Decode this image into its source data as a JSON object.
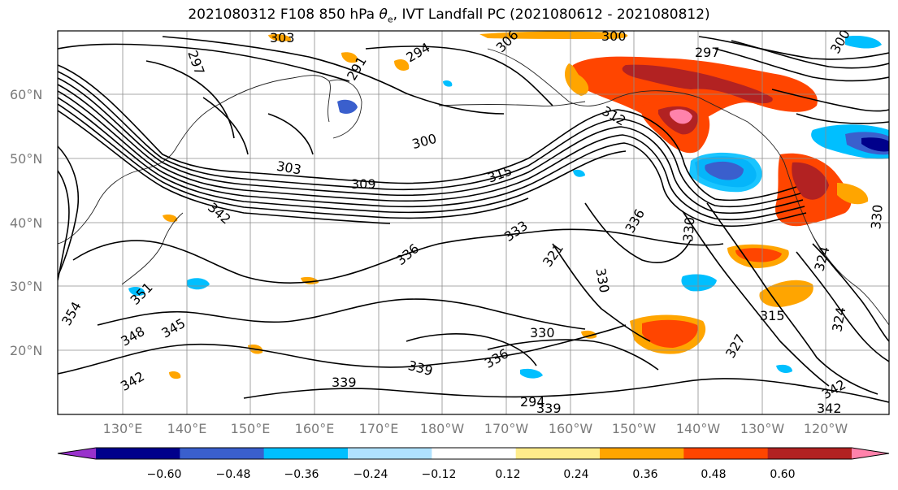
{
  "title": {
    "prefix": "2021080312 F108 850 hPa ",
    "symbol": "θ",
    "subscript": "e",
    "suffix": ", IVT Landfall PC (2021080612 - 2021080812)"
  },
  "axes": {
    "lat_labels": [
      "60°N",
      "50°N",
      "40°N",
      "30°N",
      "20°N"
    ],
    "lon_labels": [
      "130°E",
      "140°E",
      "150°E",
      "160°E",
      "170°E",
      "180°W",
      "170°W",
      "160°W",
      "150°W",
      "140°W",
      "130°W",
      "120°W"
    ]
  },
  "colorbar": {
    "tick_labels": [
      "−0.60",
      "−0.48",
      "−0.36",
      "−0.24",
      "−0.12",
      "0.12",
      "0.24",
      "0.36",
      "0.48",
      "0.60"
    ],
    "colors": [
      "#9932cc",
      "#00008b",
      "#3a5fcd",
      "#00bfff",
      "#b0e2ff",
      "#ffffff",
      "#ffec8b",
      "#ffa500",
      "#ff4500",
      "#b22222",
      "#ff82ab"
    ]
  },
  "contour_labels": [
    "303",
    "306",
    "300",
    "294",
    "297",
    "291",
    "300",
    "303",
    "309",
    "315",
    "312",
    "342",
    "333",
    "336",
    "321",
    "330",
    "330",
    "336",
    "351",
    "354",
    "348",
    "345",
    "342",
    "339",
    "339",
    "330",
    "336",
    "315",
    "327",
    "342",
    "342",
    "339",
    "324",
    "324",
    "330",
    "300",
    "297",
    "294"
  ]
}
